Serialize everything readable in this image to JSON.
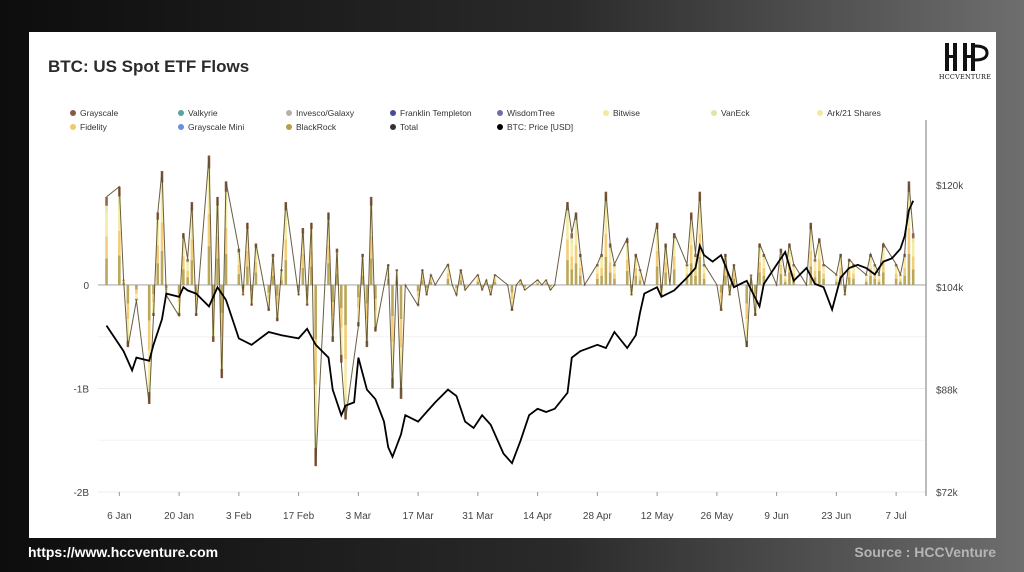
{
  "title": "BTC: US Spot ETF Flows",
  "logo": {
    "text": "HCCVENTURE"
  },
  "footer": {
    "url": "https://www.hccventure.com",
    "source": "Source : HCCVenture"
  },
  "colors": {
    "total_line": "#5b4a2c",
    "price_line": "#000000",
    "zero_line": "#888888"
  },
  "chart_data": {
    "type": "bar",
    "legend": [
      {
        "name": "Grayscale",
        "color": "#8a5a40"
      },
      {
        "name": "Valkyrie",
        "color": "#56a3a6"
      },
      {
        "name": "Invesco/Galaxy",
        "color": "#b9b1a6"
      },
      {
        "name": "Franklin Templeton",
        "color": "#4a4a9a"
      },
      {
        "name": "WisdomTree",
        "color": "#6f6fa8"
      },
      {
        "name": "Bitwise",
        "color": "#f3ea9a"
      },
      {
        "name": "VanEck",
        "color": "#dfe5a5"
      },
      {
        "name": "Ark/21 Shares",
        "color": "#f4e9a0"
      },
      {
        "name": "Fidelity",
        "color": "#f2c96b"
      },
      {
        "name": "Grayscale Mini",
        "color": "#6a8fe0"
      },
      {
        "name": "BlackRock",
        "color": "#b5a04a"
      },
      {
        "name": "Total",
        "color": "#333333"
      },
      {
        "name": "BTC: Price [USD]",
        "color": "#000000"
      }
    ],
    "x_ticks": [
      "6 Jan",
      "20 Jan",
      "3 Feb",
      "17 Feb",
      "3 Mar",
      "17 Mar",
      "31 Mar",
      "14 Apr",
      "28 Apr",
      "12 May",
      "26 May",
      "9 Jun",
      "23 Jun",
      "7 Jul"
    ],
    "y_left_ticks": [
      "0",
      "-1B",
      "-2B"
    ],
    "y_left_tick_values": [
      0,
      -1000000000,
      -2000000000
    ],
    "y_right_ticks": [
      "$120k",
      "$104k",
      "$88k",
      "$72k"
    ],
    "y_right_tick_values": [
      120000,
      104000,
      88000,
      72000
    ],
    "y_left_range": [
      -2000000000,
      1400000000
    ],
    "y_right_range": [
      72000,
      127000
    ],
    "grid": true,
    "legend_position": "top",
    "series": [
      {
        "name": "Total",
        "unit": "USD",
        "anchors": [
          [
            "2025-01-03",
            850000000.0
          ],
          [
            "2025-01-06",
            950000000.0
          ],
          [
            "2025-01-07",
            50000000.0
          ],
          [
            "2025-01-08",
            -600000000.0
          ],
          [
            "2025-01-10",
            -150000000.0
          ],
          [
            "2025-01-13",
            -1150000000.0
          ],
          [
            "2025-01-14",
            -300000000.0
          ],
          [
            "2025-01-15",
            700000000.0
          ],
          [
            "2025-01-16",
            1100000000.0
          ],
          [
            "2025-01-17",
            -100000000.0
          ],
          [
            "2025-01-20",
            -300000000.0
          ],
          [
            "2025-01-21",
            500000000.0
          ],
          [
            "2025-01-22",
            250000000.0
          ],
          [
            "2025-01-23",
            800000000.0
          ],
          [
            "2025-01-24",
            -300000000.0
          ],
          [
            "2025-01-27",
            1250000000.0
          ],
          [
            "2025-01-28",
            -550000000.0
          ],
          [
            "2025-01-29",
            850000000.0
          ],
          [
            "2025-01-30",
            -900000000.0
          ],
          [
            "2025-01-31",
            1000000000.0
          ],
          [
            "2025-02-03",
            350000000.0
          ],
          [
            "2025-02-04",
            -100000000.0
          ],
          [
            "2025-02-05",
            600000000.0
          ],
          [
            "2025-02-06",
            -200000000.0
          ],
          [
            "2025-02-07",
            400000000.0
          ],
          [
            "2025-02-10",
            -250000000.0
          ],
          [
            "2025-02-11",
            300000000.0
          ],
          [
            "2025-02-12",
            -350000000.0
          ],
          [
            "2025-02-13",
            150000000.0
          ],
          [
            "2025-02-14",
            800000000.0
          ],
          [
            "2025-02-17",
            -100000000.0
          ],
          [
            "2025-02-18",
            550000000.0
          ],
          [
            "2025-02-19",
            -200000000.0
          ],
          [
            "2025-02-20",
            600000000.0
          ],
          [
            "2025-02-21",
            -1750000000.0
          ],
          [
            "2025-02-24",
            700000000.0
          ],
          [
            "2025-02-25",
            -550000000.0
          ],
          [
            "2025-02-26",
            350000000.0
          ],
          [
            "2025-02-27",
            -750000000.0
          ],
          [
            "2025-02-28",
            -1300000000.0
          ],
          [
            "2025-03-03",
            -400000000.0
          ],
          [
            "2025-03-04",
            300000000.0
          ],
          [
            "2025-03-05",
            -600000000.0
          ],
          [
            "2025-03-06",
            850000000.0
          ],
          [
            "2025-03-07",
            -450000000.0
          ],
          [
            "2025-03-10",
            200000000.0
          ],
          [
            "2025-03-11",
            -1000000000.0
          ],
          [
            "2025-03-12",
            150000000.0
          ],
          [
            "2025-03-13",
            -1100000000.0
          ],
          [
            "2025-03-14",
            0.0
          ],
          [
            "2025-03-17",
            -200000000.0
          ],
          [
            "2025-03-18",
            150000000.0
          ],
          [
            "2025-03-19",
            -100000000.0
          ],
          [
            "2025-03-20",
            100000000.0
          ],
          [
            "2025-03-21",
            0.0
          ],
          [
            "2025-03-24",
            200000000.0
          ],
          [
            "2025-03-25",
            0.0
          ],
          [
            "2025-03-26",
            -100000000.0
          ],
          [
            "2025-03-27",
            150000000.0
          ],
          [
            "2025-03-28",
            -50000000.0
          ],
          [
            "2025-03-31",
            100000000.0
          ],
          [
            "2025-04-01",
            -50000000.0
          ],
          [
            "2025-04-02",
            50000000.0
          ],
          [
            "2025-04-03",
            -100000000.0
          ],
          [
            "2025-04-04",
            100000000.0
          ],
          [
            "2025-04-07",
            0.0
          ],
          [
            "2025-04-08",
            -250000000.0
          ],
          [
            "2025-04-09",
            0.0
          ],
          [
            "2025-04-10",
            50000000.0
          ],
          [
            "2025-04-11",
            -50000000.0
          ],
          [
            "2025-04-14",
            50000000.0
          ],
          [
            "2025-04-15",
            0.0
          ],
          [
            "2025-04-16",
            50000000.0
          ],
          [
            "2025-04-17",
            -50000000.0
          ],
          [
            "2025-04-18",
            0.0
          ],
          [
            "2025-04-21",
            800000000.0
          ],
          [
            "2025-04-22",
            500000000.0
          ],
          [
            "2025-04-23",
            700000000.0
          ],
          [
            "2025-04-24",
            300000000.0
          ],
          [
            "2025-04-25",
            0.0
          ],
          [
            "2025-04-28",
            200000000.0
          ],
          [
            "2025-04-29",
            300000000.0
          ],
          [
            "2025-04-30",
            900000000.0
          ],
          [
            "2025-05-01",
            400000000.0
          ],
          [
            "2025-05-02",
            200000000.0
          ],
          [
            "2025-05-05",
            450000000.0
          ],
          [
            "2025-05-06",
            -100000000.0
          ],
          [
            "2025-05-07",
            300000000.0
          ],
          [
            "2025-05-08",
            150000000.0
          ],
          [
            "2025-05-09",
            0.0
          ],
          [
            "2025-05-12",
            600000000.0
          ],
          [
            "2025-05-13",
            -100000000.0
          ],
          [
            "2025-05-14",
            400000000.0
          ],
          [
            "2025-05-15",
            0.0
          ],
          [
            "2025-05-16",
            500000000.0
          ],
          [
            "2025-05-19",
            200000000.0
          ],
          [
            "2025-05-20",
            700000000.0
          ],
          [
            "2025-05-21",
            300000000.0
          ],
          [
            "2025-05-22",
            900000000.0
          ],
          [
            "2025-05-23",
            200000000.0
          ],
          [
            "2025-05-26",
            0.0
          ],
          [
            "2025-05-27",
            -250000000.0
          ],
          [
            "2025-05-28",
            300000000.0
          ],
          [
            "2025-05-29",
            -100000000.0
          ],
          [
            "2025-05-30",
            200000000.0
          ],
          [
            "2025-06-02",
            -600000000.0
          ],
          [
            "2025-06-03",
            100000000.0
          ],
          [
            "2025-06-04",
            -300000000.0
          ],
          [
            "2025-06-05",
            400000000.0
          ],
          [
            "2025-06-06",
            300000000.0
          ],
          [
            "2025-06-09",
            0.0
          ],
          [
            "2025-06-10",
            350000000.0
          ],
          [
            "2025-06-11",
            100000000.0
          ],
          [
            "2025-06-12",
            400000000.0
          ],
          [
            "2025-06-13",
            200000000.0
          ],
          [
            "2025-06-16",
            0.0
          ],
          [
            "2025-06-17",
            600000000.0
          ],
          [
            "2025-06-18",
            250000000.0
          ],
          [
            "2025-06-19",
            450000000.0
          ],
          [
            "2025-06-20",
            200000000.0
          ],
          [
            "2025-06-23",
            100000000.0
          ],
          [
            "2025-06-24",
            300000000.0
          ],
          [
            "2025-06-25",
            -100000000.0
          ],
          [
            "2025-06-26",
            250000000.0
          ],
          [
            "2025-06-27",
            200000000.0
          ],
          [
            "2025-06-30",
            100000000.0
          ],
          [
            "2025-07-01",
            300000000.0
          ],
          [
            "2025-07-02",
            200000000.0
          ],
          [
            "2025-07-03",
            100000000.0
          ],
          [
            "2025-07-04",
            400000000.0
          ],
          [
            "2025-07-07",
            200000000.0
          ],
          [
            "2025-07-08",
            100000000.0
          ],
          [
            "2025-07-09",
            300000000.0
          ],
          [
            "2025-07-10",
            1000000000.0
          ],
          [
            "2025-07-11",
            500000000.0
          ]
        ]
      },
      {
        "name": "BTC: Price [USD]",
        "unit": "USD",
        "anchors": [
          [
            "2025-01-03",
            98000
          ],
          [
            "2025-01-07",
            94000
          ],
          [
            "2025-01-09",
            91000
          ],
          [
            "2025-01-10",
            93000
          ],
          [
            "2025-01-13",
            92500
          ],
          [
            "2025-01-14",
            95000
          ],
          [
            "2025-01-16",
            99000
          ],
          [
            "2025-01-17",
            103000
          ],
          [
            "2025-01-20",
            102500
          ],
          [
            "2025-01-21",
            104000
          ],
          [
            "2025-01-22",
            103500
          ],
          [
            "2025-01-24",
            103000
          ],
          [
            "2025-01-27",
            101000
          ],
          [
            "2025-01-29",
            104000
          ],
          [
            "2025-01-31",
            102000
          ],
          [
            "2025-02-02",
            98000
          ],
          [
            "2025-02-03",
            96000
          ],
          [
            "2025-02-06",
            95000
          ],
          [
            "2025-02-10",
            97000
          ],
          [
            "2025-02-13",
            96500
          ],
          [
            "2025-02-17",
            96000
          ],
          [
            "2025-02-19",
            97500
          ],
          [
            "2025-02-21",
            95000
          ],
          [
            "2025-02-24",
            93000
          ],
          [
            "2025-02-25",
            88000
          ],
          [
            "2025-02-27",
            84000
          ],
          [
            "2025-02-28",
            85500
          ],
          [
            "2025-03-02",
            86000
          ],
          [
            "2025-03-03",
            93000
          ],
          [
            "2025-03-05",
            88000
          ],
          [
            "2025-03-07",
            86500
          ],
          [
            "2025-03-09",
            83000
          ],
          [
            "2025-03-10",
            79000
          ],
          [
            "2025-03-11",
            77500
          ],
          [
            "2025-03-13",
            81000
          ],
          [
            "2025-03-14",
            84000
          ],
          [
            "2025-03-17",
            83000
          ],
          [
            "2025-03-19",
            84500
          ],
          [
            "2025-03-21",
            86000
          ],
          [
            "2025-03-24",
            88000
          ],
          [
            "2025-03-26",
            87000
          ],
          [
            "2025-03-28",
            83000
          ],
          [
            "2025-03-30",
            82000
          ],
          [
            "2025-04-01",
            84000
          ],
          [
            "2025-04-03",
            82500
          ],
          [
            "2025-04-06",
            78000
          ],
          [
            "2025-04-08",
            76500
          ],
          [
            "2025-04-10",
            80000
          ],
          [
            "2025-04-12",
            84000
          ],
          [
            "2025-04-14",
            85000
          ],
          [
            "2025-04-16",
            84500
          ],
          [
            "2025-04-18",
            85000
          ],
          [
            "2025-04-21",
            87500
          ],
          [
            "2025-04-22",
            93000
          ],
          [
            "2025-04-24",
            94000
          ],
          [
            "2025-04-28",
            95000
          ],
          [
            "2025-04-30",
            94500
          ],
          [
            "2025-05-02",
            97000
          ],
          [
            "2025-05-05",
            94500
          ],
          [
            "2025-05-07",
            96500
          ],
          [
            "2025-05-08",
            100000
          ],
          [
            "2025-05-09",
            103000
          ],
          [
            "2025-05-12",
            104000
          ],
          [
            "2025-05-13",
            102500
          ],
          [
            "2025-05-16",
            103500
          ],
          [
            "2025-05-19",
            105500
          ],
          [
            "2025-05-21",
            107000
          ],
          [
            "2025-05-22",
            110500
          ],
          [
            "2025-05-23",
            109000
          ],
          [
            "2025-05-25",
            108000
          ],
          [
            "2025-05-27",
            109000
          ],
          [
            "2025-05-30",
            104000
          ],
          [
            "2025-06-02",
            105000
          ],
          [
            "2025-06-05",
            101000
          ],
          [
            "2025-06-06",
            104500
          ],
          [
            "2025-06-09",
            107500
          ],
          [
            "2025-06-11",
            109500
          ],
          [
            "2025-06-13",
            105000
          ],
          [
            "2025-06-16",
            107000
          ],
          [
            "2025-06-18",
            104500
          ],
          [
            "2025-06-20",
            104000
          ],
          [
            "2025-06-22",
            100500
          ],
          [
            "2025-06-24",
            105500
          ],
          [
            "2025-06-26",
            107000
          ],
          [
            "2025-06-28",
            107500
          ],
          [
            "2025-06-30",
            107000
          ],
          [
            "2025-07-02",
            106000
          ],
          [
            "2025-07-04",
            108000
          ],
          [
            "2025-07-06",
            108500
          ],
          [
            "2025-07-08",
            110000
          ],
          [
            "2025-07-09",
            112000
          ],
          [
            "2025-07-10",
            116000
          ],
          [
            "2025-07-11",
            117500
          ]
        ]
      }
    ]
  }
}
